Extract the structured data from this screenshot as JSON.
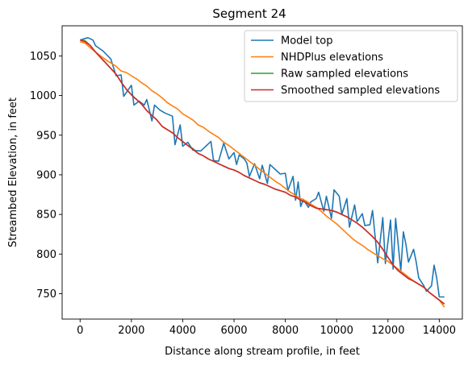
{
  "chart_data": {
    "type": "line",
    "title": "Segment 24",
    "xlabel": "Distance along stream profile, in feet",
    "ylabel": "Streambed Elevation, in feet",
    "xlim": [
      -700,
      14900
    ],
    "ylim": [
      718,
      1088
    ],
    "xticks": [
      0,
      2000,
      4000,
      6000,
      8000,
      10000,
      12000,
      14000
    ],
    "yticks": [
      750,
      800,
      850,
      900,
      950,
      1000,
      1050
    ],
    "grid": false,
    "legend_position": "top-right",
    "series": [
      {
        "name": "Model top",
        "color": "#1f77b4",
        "x": [
          0,
          300,
          500,
          600,
          900,
          1200,
          1400,
          1600,
          1700,
          2000,
          2100,
          2300,
          2500,
          2600,
          2800,
          2900,
          3100,
          3300,
          3600,
          3700,
          3900,
          4000,
          4200,
          4400,
          4700,
          5100,
          5200,
          5400,
          5600,
          5800,
          6000,
          6100,
          6200,
          6400,
          6500,
          6600,
          6800,
          7000,
          7100,
          7300,
          7400,
          7600,
          7800,
          8000,
          8100,
          8300,
          8400,
          8500,
          8600,
          8700,
          8900,
          9000,
          9200,
          9300,
          9500,
          9600,
          9800,
          9900,
          10100,
          10200,
          10400,
          10500,
          10700,
          10800,
          11000,
          11100,
          11300,
          11400,
          11600,
          11800,
          11900,
          12100,
          12200,
          12300,
          12500,
          12600,
          12700,
          12800,
          13000,
          13100,
          13200,
          13400,
          13500,
          13700,
          13800,
          13900,
          14000,
          14100,
          14150,
          14200
        ],
        "y": [
          1070,
          1073,
          1070,
          1063,
          1056,
          1046,
          1025,
          1026,
          999,
          1013,
          988,
          993,
          988,
          995,
          968,
          988,
          982,
          978,
          974,
          938,
          963,
          936,
          941,
          931,
          930,
          942,
          918,
          917,
          940,
          920,
          928,
          913,
          925,
          920,
          915,
          898,
          914,
          895,
          912,
          889,
          913,
          907,
          901,
          902,
          880,
          898,
          868,
          891,
          860,
          869,
          859,
          866,
          870,
          878,
          854,
          873,
          845,
          881,
          873,
          850,
          870,
          834,
          862,
          841,
          851,
          836,
          837,
          855,
          789,
          846,
          788,
          843,
          781,
          845,
          779,
          828,
          812,
          790,
          806,
          790,
          770,
          760,
          753,
          760,
          786,
          770,
          746,
          746,
          746,
          746
        ]
      },
      {
        "name": "NHDPlus elevations",
        "color": "#ff7f0e",
        "x": [
          0,
          200,
          400,
          600,
          800,
          1000,
          1200,
          1400,
          1600,
          1800,
          2000,
          2200,
          2400,
          2600,
          2800,
          3000,
          3200,
          3400,
          3600,
          3800,
          4000,
          4200,
          4400,
          4600,
          4800,
          5000,
          5200,
          5400,
          5600,
          5800,
          6000,
          6200,
          6400,
          6600,
          6800,
          7000,
          7200,
          7400,
          7600,
          7800,
          8000,
          8200,
          8400,
          8600,
          8800,
          9000,
          9200,
          9400,
          9600,
          9800,
          10000,
          10200,
          10400,
          10600,
          10800,
          11000,
          11200,
          11400,
          11600,
          11800,
          12000,
          12200,
          12400,
          12600,
          12800,
          13000,
          13200,
          13400,
          13600,
          13800,
          14000,
          14200
        ],
        "y": [
          1068,
          1066,
          1060,
          1055,
          1050,
          1045,
          1041,
          1037,
          1031,
          1029,
          1025,
          1021,
          1016,
          1012,
          1006,
          1002,
          997,
          991,
          987,
          983,
          977,
          973,
          969,
          963,
          960,
          955,
          951,
          947,
          941,
          937,
          932,
          927,
          922,
          917,
          912,
          907,
          902,
          897,
          892,
          888,
          883,
          878,
          874,
          870,
          867,
          863,
          859,
          854,
          848,
          843,
          838,
          832,
          826,
          820,
          815,
          811,
          806,
          802,
          798,
          794,
          791,
          786,
          781,
          776,
          771,
          766,
          762,
          758,
          752,
          747,
          742,
          733
        ]
      },
      {
        "name": "Raw sampled elevations",
        "color": "#2ca02c",
        "x": [
          0,
          200,
          400,
          600,
          800,
          1000,
          1200,
          1400,
          1600,
          1800,
          2000,
          2200,
          2400,
          2600,
          2800,
          3000,
          3200,
          3400,
          3600,
          3800,
          4000,
          4200,
          4400,
          4600,
          4800,
          5000,
          5200,
          5400,
          5600,
          5800,
          6000,
          6200,
          6400,
          6600,
          6800,
          7000,
          7200,
          7400,
          7600,
          7800,
          8000,
          8200,
          8400,
          8600,
          8800,
          9000,
          9200,
          9400,
          9600,
          9800,
          10000,
          10200,
          10400,
          10600,
          10800,
          11000,
          11200,
          11400,
          11600,
          11800,
          12000,
          12200,
          12400,
          12600,
          12800,
          13000,
          13200,
          13400,
          13600,
          13800,
          14000,
          14200
        ],
        "y": [
          1070,
          1069,
          1063,
          1055,
          1048,
          1041,
          1034,
          1027,
          1017,
          1008,
          1001,
          995,
          989,
          981,
          975,
          969,
          961,
          957,
          953,
          947,
          942,
          937,
          933,
          927,
          924,
          920,
          917,
          914,
          911,
          908,
          906,
          903,
          899,
          896,
          893,
          890,
          888,
          885,
          882,
          880,
          878,
          874,
          872,
          868,
          865,
          861,
          858,
          857,
          856,
          855,
          853,
          850,
          847,
          843,
          839,
          834,
          828,
          822,
          815,
          806,
          796,
          786,
          779,
          774,
          769,
          766,
          762,
          758,
          752,
          747,
          742,
          737
        ]
      },
      {
        "name": "Smoothed sampled elevations",
        "color": "#d62728",
        "x": [
          0,
          200,
          400,
          600,
          800,
          1000,
          1200,
          1400,
          1600,
          1800,
          2000,
          2200,
          2400,
          2600,
          2800,
          3000,
          3200,
          3400,
          3600,
          3800,
          4000,
          4200,
          4400,
          4600,
          4800,
          5000,
          5200,
          5400,
          5600,
          5800,
          6000,
          6200,
          6400,
          6600,
          6800,
          7000,
          7200,
          7400,
          7600,
          7800,
          8000,
          8200,
          8400,
          8600,
          8800,
          9000,
          9200,
          9400,
          9600,
          9800,
          10000,
          10200,
          10400,
          10600,
          10800,
          11000,
          11200,
          11400,
          11600,
          11800,
          12000,
          12200,
          12400,
          12600,
          12800,
          13000,
          13200,
          13400,
          13600,
          13800,
          14000,
          14200
        ],
        "y": [
          1070,
          1068,
          1063,
          1055,
          1048,
          1041,
          1034,
          1027,
          1017,
          1008,
          1001,
          995,
          989,
          981,
          975,
          969,
          961,
          957,
          953,
          947,
          942,
          937,
          932,
          927,
          924,
          920,
          917,
          914,
          911,
          908,
          906,
          903,
          899,
          896,
          893,
          890,
          888,
          885,
          882,
          880,
          878,
          874,
          872,
          868,
          865,
          861,
          858,
          857,
          856,
          855,
          853,
          850,
          847,
          843,
          839,
          834,
          828,
          822,
          815,
          806,
          796,
          786,
          779,
          774,
          769,
          766,
          762,
          758,
          752,
          747,
          742,
          737
        ]
      }
    ]
  }
}
